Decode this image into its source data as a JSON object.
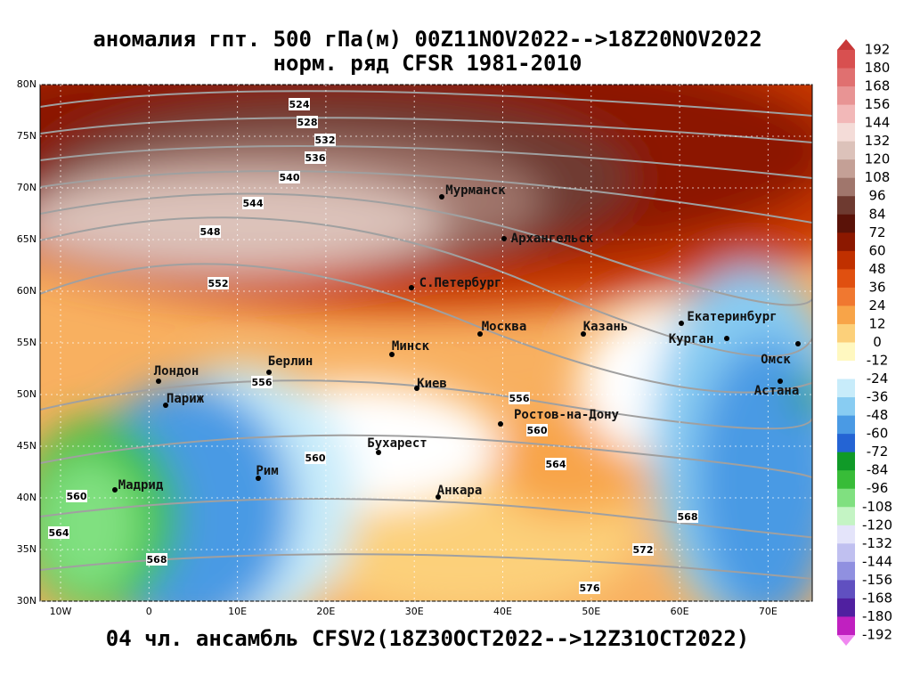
{
  "title": [
    "аномалия гпт. 500 гПа(м) 00Z11NOV2022-->18Z20NOV2022",
    "норм. ряд CFSR 1981-2010"
  ],
  "footer": "04 чл. ансамбль CFSV2(18Z30OCT2022-->12Z31OCT2022)",
  "map": {
    "lat_labels": [
      "80N",
      "75N",
      "70N",
      "65N",
      "60N",
      "55N",
      "50N",
      "45N",
      "40N",
      "35N",
      "30N"
    ],
    "lon_labels": [
      "10W",
      "0",
      "10E",
      "20E",
      "30E",
      "40E",
      "50E",
      "60E",
      "70E"
    ],
    "cities": [
      "Мурманск",
      "Архангельск",
      "С.Петербург",
      "Москва",
      "Казань",
      "Екатеринбург",
      "Курган",
      "Омск",
      "Астана",
      "Минск",
      "Берлин",
      "Лондон",
      "Париж",
      "Киев",
      "Ростов-на-Дону",
      "Бухарест",
      "Рим",
      "Мадрид",
      "Анкара"
    ],
    "contour_labels": [
      524,
      528,
      532,
      536,
      540,
      544,
      548,
      552,
      556,
      556,
      560,
      560,
      560,
      564,
      564,
      568,
      568,
      572,
      576
    ]
  },
  "colorbar": {
    "ticks": [
      192,
      180,
      168,
      156,
      144,
      132,
      120,
      108,
      96,
      84,
      72,
      60,
      48,
      36,
      24,
      12,
      0,
      -12,
      -24,
      -36,
      -48,
      -60,
      -72,
      -84,
      -96,
      -108,
      -120,
      -132,
      -144,
      -156,
      -168,
      -180,
      -192
    ],
    "colors": [
      "#c83838",
      "#d85050",
      "#e07070",
      "#e89494",
      "#f2b8b8",
      "#f4dcd8",
      "#dcc2ba",
      "#c4a096",
      "#a0766c",
      "#6e3a30",
      "#5a1208",
      "#8c1800",
      "#c03000",
      "#e05010",
      "#f07830",
      "#f8a448",
      "#fcd07a",
      "#fff8c0",
      "#ffffff",
      "#c8ecfa",
      "#88ccf2",
      "#4a9ae4",
      "#2464d4",
      "#109a28",
      "#38bc38",
      "#80e080",
      "#c4f4c4",
      "#e4e4fa",
      "#c0c0f0",
      "#9090e0",
      "#6050c0",
      "#5020a0",
      "#c020c0",
      "#f088f0"
    ]
  }
}
